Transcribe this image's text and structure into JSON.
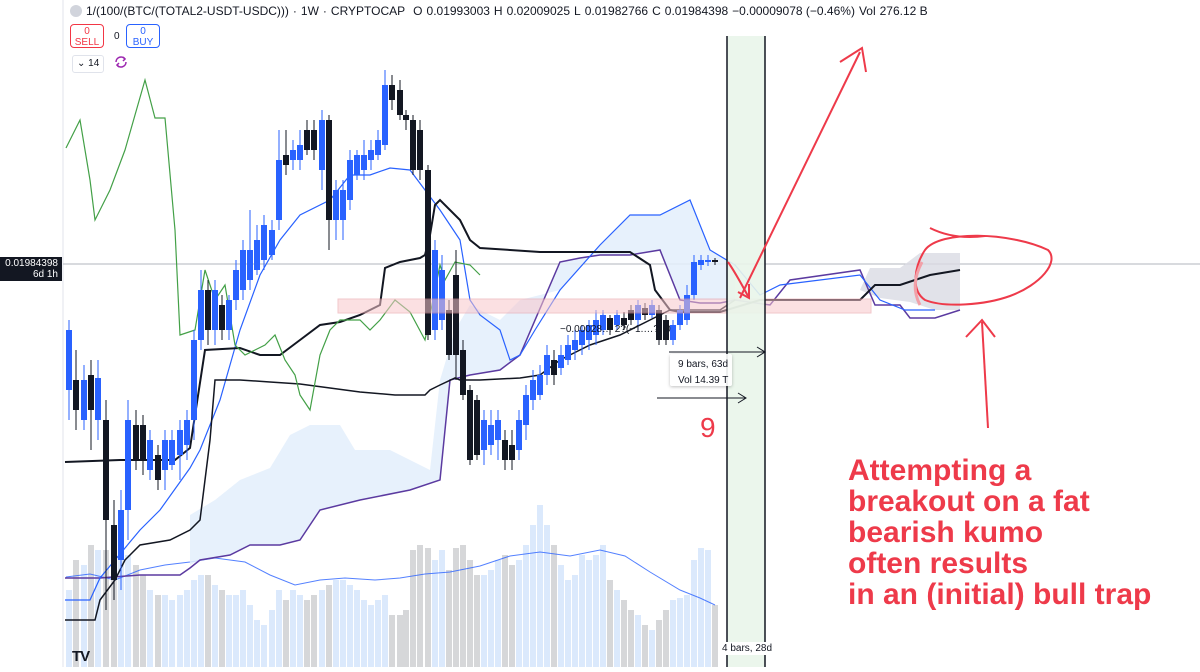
{
  "header": {
    "symbol": "1/(100/(BTC/(TOTAL2-USDT-USDC)))",
    "interval": "1W",
    "exchange": "CRYPTOCAP",
    "open_label": "O",
    "open": "0.01993003",
    "high_label": "H",
    "high": "0.02009025",
    "low_label": "L",
    "low": "0.01982766",
    "close_label": "C",
    "close": "0.01984398",
    "change": "−0.00009078 (−0.46%)",
    "vol_label": "Vol",
    "vol": "276.12 B"
  },
  "trade": {
    "sell_value": "0",
    "sell_label": "SELL",
    "spread": "0",
    "buy_value": "0",
    "buy_label": "BUY"
  },
  "indicators": {
    "collapse_count": "14"
  },
  "price_axis": {
    "current_price": "0.01984398",
    "countdown": "6d 1h"
  },
  "drawings": {
    "change_label": "−0.00028… 2?(−1.…?) 0",
    "bars_range": "9 bars, 63d",
    "bars_volume": "Vol 14.39 T",
    "bottom_range": "4 bars, 28d",
    "count": "9",
    "annotation": "Attempting a\nbreakout on a fat\nbearish kumo\noften results\nin an (initial) bull trap"
  },
  "colors": {
    "bull_candle": "#2962ff",
    "bear_candle": "#131722",
    "annotation": "#ee3a4a",
    "kumo_fill": "#e3eefc",
    "tenkan": "#131722",
    "kijun": "#131722",
    "chikou": "#43a047",
    "senkou_a": "#2962ff",
    "senkou_b": "#5b3aa0"
  },
  "logo": "TV"
}
